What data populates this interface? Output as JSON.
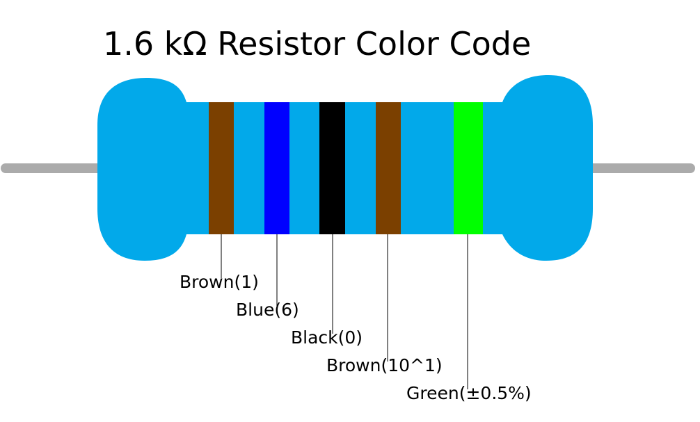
{
  "title": "1.6 kΩ Resistor Color Code",
  "colors": {
    "body": "#02A9EA",
    "lead": "#ABABAB",
    "leader_line": "#000000"
  },
  "bands": [
    {
      "color_name": "Brown",
      "color": "#7B4000",
      "label": "Brown(1)"
    },
    {
      "color_name": "Blue",
      "color": "#0000FF",
      "label": "Blue(6)"
    },
    {
      "color_name": "Black",
      "color": "#000000",
      "label": "Black(0)"
    },
    {
      "color_name": "Brown",
      "color": "#7B4000",
      "label": "Brown(10^1)"
    },
    {
      "color_name": "Green",
      "color": "#00FF00",
      "label": "Green(±0.5%)"
    }
  ]
}
